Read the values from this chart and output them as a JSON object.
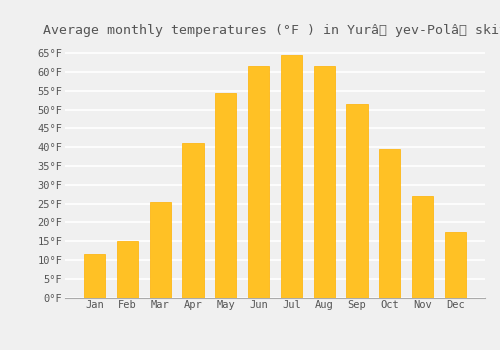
{
  "title": "Average monthly temperatures (°F ) in Yurâyev-Polâskiy",
  "title_display": "Average monthly temperatures (°F ) in Yurâ  yev-Polâ  skiy",
  "months": [
    "Jan",
    "Feb",
    "Mar",
    "Apr",
    "May",
    "Jun",
    "Jul",
    "Aug",
    "Sep",
    "Oct",
    "Nov",
    "Dec"
  ],
  "values": [
    11.5,
    15.0,
    25.5,
    41.0,
    54.5,
    61.5,
    64.5,
    61.5,
    51.5,
    39.5,
    27.0,
    17.5
  ],
  "bar_color": "#FFC125",
  "bar_edge_color": "#FFB000",
  "background_color": "#f0f0f0",
  "grid_color": "#ffffff",
  "text_color": "#555555",
  "ylim": [
    0,
    68
  ],
  "yticks": [
    0,
    5,
    10,
    15,
    20,
    25,
    30,
    35,
    40,
    45,
    50,
    55,
    60,
    65
  ],
  "title_fontsize": 9.5,
  "tick_fontsize": 7.5
}
